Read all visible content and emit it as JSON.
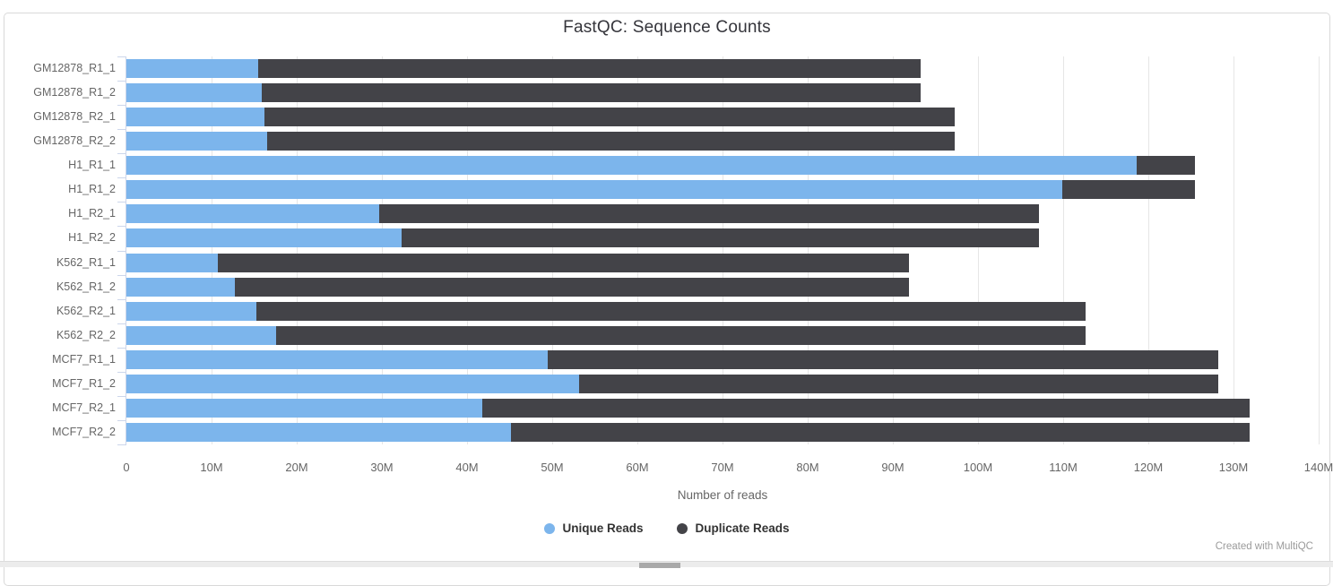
{
  "title": "FastQC: Sequence Counts",
  "footer": {
    "credit": "Created with MultiQC"
  },
  "colors": {
    "unique": "#7cb5ec",
    "duplicate": "#434348",
    "gridline": "#e6e6e6",
    "axis": "#ccd6eb",
    "label_gray": "#666666"
  },
  "chart_data": {
    "type": "bar",
    "orientation": "horizontal",
    "stacked": true,
    "title": "FastQC: Sequence Counts",
    "xlabel": "Number of reads",
    "xlim_millions": [
      0,
      140
    ],
    "x_tick_step_millions": 10,
    "x_tick_labels": [
      "0",
      "10M",
      "20M",
      "30M",
      "40M",
      "50M",
      "60M",
      "70M",
      "80M",
      "90M",
      "100M",
      "110M",
      "120M",
      "130M",
      "140M"
    ],
    "grid": true,
    "legend_position": "bottom",
    "categories": [
      "GM12878_R1_1",
      "GM12878_R1_2",
      "GM12878_R2_1",
      "GM12878_R2_2",
      "H1_R1_1",
      "H1_R1_2",
      "H1_R2_1",
      "H1_R2_2",
      "K562_R1_1",
      "K562_R1_2",
      "K562_R2_1",
      "K562_R2_2",
      "MCF7_R1_1",
      "MCF7_R1_2",
      "MCF7_R2_1",
      "MCF7_R2_2"
    ],
    "series": [
      {
        "name": "Unique Reads",
        "color": "#7cb5ec",
        "values_millions": [
          15.5,
          15.9,
          16.2,
          16.5,
          118.6,
          109.9,
          29.7,
          32.3,
          10.7,
          12.7,
          15.3,
          17.6,
          49.5,
          53.2,
          41.8,
          45.2
        ]
      },
      {
        "name": "Duplicate Reads",
        "color": "#434348",
        "values_millions": [
          77.8,
          77.4,
          81.1,
          80.8,
          6.9,
          15.6,
          77.5,
          74.9,
          81.2,
          79.2,
          97.3,
          95.0,
          78.7,
          75.0,
          90.1,
          86.7
        ]
      }
    ],
    "totals_millions": [
      93.3,
      93.3,
      97.3,
      97.3,
      125.5,
      125.5,
      107.2,
      107.2,
      91.9,
      91.9,
      112.6,
      112.6,
      128.2,
      128.2,
      131.9,
      131.9
    ]
  }
}
